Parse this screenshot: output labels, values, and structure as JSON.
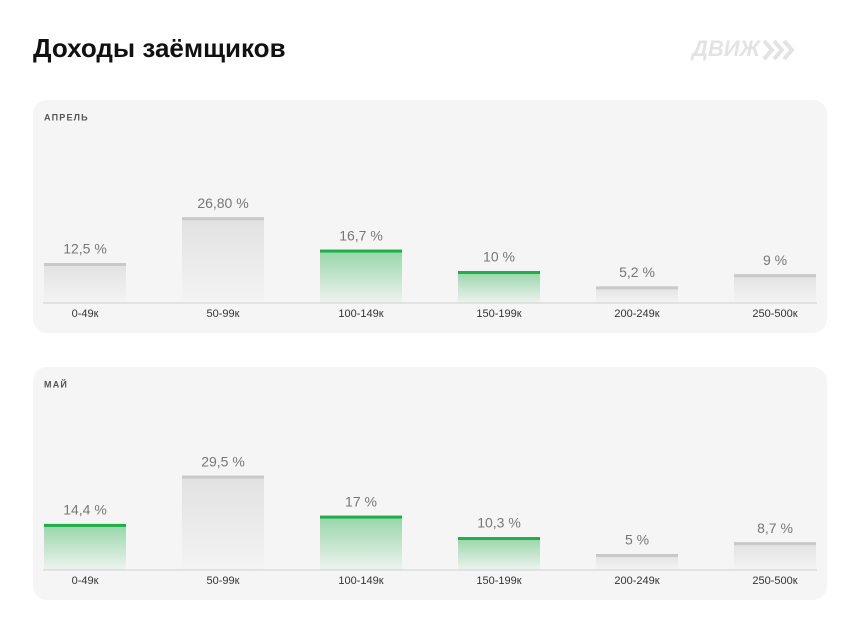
{
  "title": "Доходы заёмщиков",
  "brand": "ДВИЖ",
  "chart_data": [
    {
      "type": "bar",
      "title": "АПРЕЛЬ",
      "categories": [
        "0-49к",
        "50-99к",
        "100-149к",
        "150-199к",
        "200-249к",
        "250-500к"
      ],
      "values": [
        12.5,
        26.8,
        16.7,
        10,
        5.2,
        9
      ],
      "value_labels": [
        "12,5 %",
        "26,80 %",
        "16,7 %",
        "10 %",
        "5,2 %",
        "9 %"
      ],
      "colors": [
        "#c9c9c9",
        "#c9c9c9",
        "#1faf48",
        "#1faf48",
        "#c9c9c9",
        "#c9c9c9"
      ]
    },
    {
      "type": "bar",
      "title": "МАЙ",
      "categories": [
        "0-49к",
        "50-99к",
        "100-149к",
        "150-199к",
        "200-249к",
        "250-500к"
      ],
      "values": [
        14.4,
        29.5,
        17,
        10.3,
        5,
        8.7
      ],
      "value_labels": [
        "14,4 %",
        "29,5 %",
        "17 %",
        "10,3 %",
        "5 %",
        "8,7 %"
      ],
      "colors": [
        "#1faf48",
        "#c9c9c9",
        "#1faf48",
        "#1faf48",
        "#c9c9c9",
        "#c9c9c9"
      ]
    }
  ]
}
